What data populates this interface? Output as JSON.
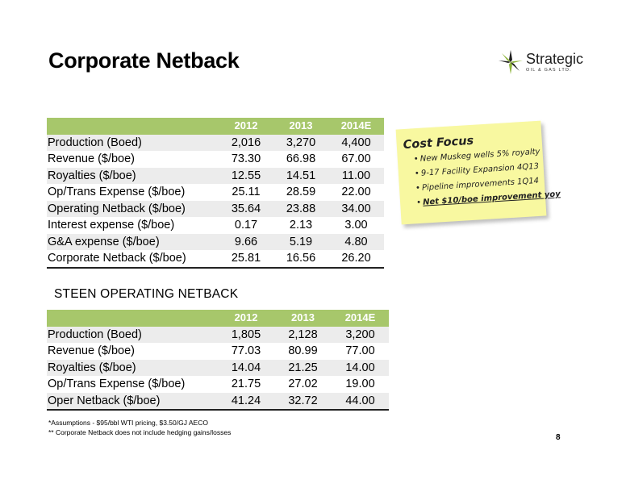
{
  "title": "Corporate Netback",
  "logo": {
    "name": "Strategic",
    "sub": "OIL & GAS LTD."
  },
  "corporate_table": {
    "headers": [
      "",
      "2012",
      "2013",
      "2014E"
    ],
    "rows": [
      [
        "Production (Boed)",
        "2,016",
        "3,270",
        "4,400"
      ],
      [
        "Revenue ($/boe)",
        "73.30",
        "66.98",
        "67.00"
      ],
      [
        "Royalties ($/boe)",
        "12.55",
        "14.51",
        "11.00"
      ],
      [
        "Op/Trans Expense ($/boe)",
        "25.11",
        "28.59",
        "22.00"
      ],
      [
        "Operating Netback ($/boe)",
        "35.64",
        "23.88",
        "34.00"
      ],
      [
        "Interest expense ($/boe)",
        "0.17",
        "2.13",
        "3.00"
      ],
      [
        "G&A expense ($/boe)",
        "9.66",
        "5.19",
        "4.80"
      ],
      [
        "Corporate Netback ($/boe)",
        "25.81",
        "16.56",
        "26.20"
      ]
    ]
  },
  "steen_title": "STEEN OPERATING NETBACK",
  "steen_table": {
    "headers": [
      "",
      "2012",
      "2013",
      "2014E"
    ],
    "rows": [
      [
        "Production (Boed)",
        "1,805",
        "2,128",
        "3,200"
      ],
      [
        "Revenue ($/boe)",
        "77.03",
        "80.99",
        "77.00"
      ],
      [
        "Royalties ($/boe)",
        "14.04",
        "21.25",
        "14.00"
      ],
      [
        "Op/Trans Expense ($/boe)",
        "21.75",
        "27.02",
        "19.00"
      ],
      [
        "Oper Netback ($/boe)",
        "41.24",
        "32.72",
        "44.00"
      ]
    ]
  },
  "note": {
    "title": "Cost Focus",
    "items": [
      "New Muskeg wells 5% royalty",
      "9-17 Facility Expansion 4Q13",
      "Pipeline improvements 1Q14",
      "Net $10/boe improvement yoy"
    ]
  },
  "footnotes": [
    "*Assumptions - $95/bbl WTI pricing, $3.50/GJ AECO",
    "** Corporate Netback does not include hedging gains/losses"
  ],
  "page_number": "8"
}
